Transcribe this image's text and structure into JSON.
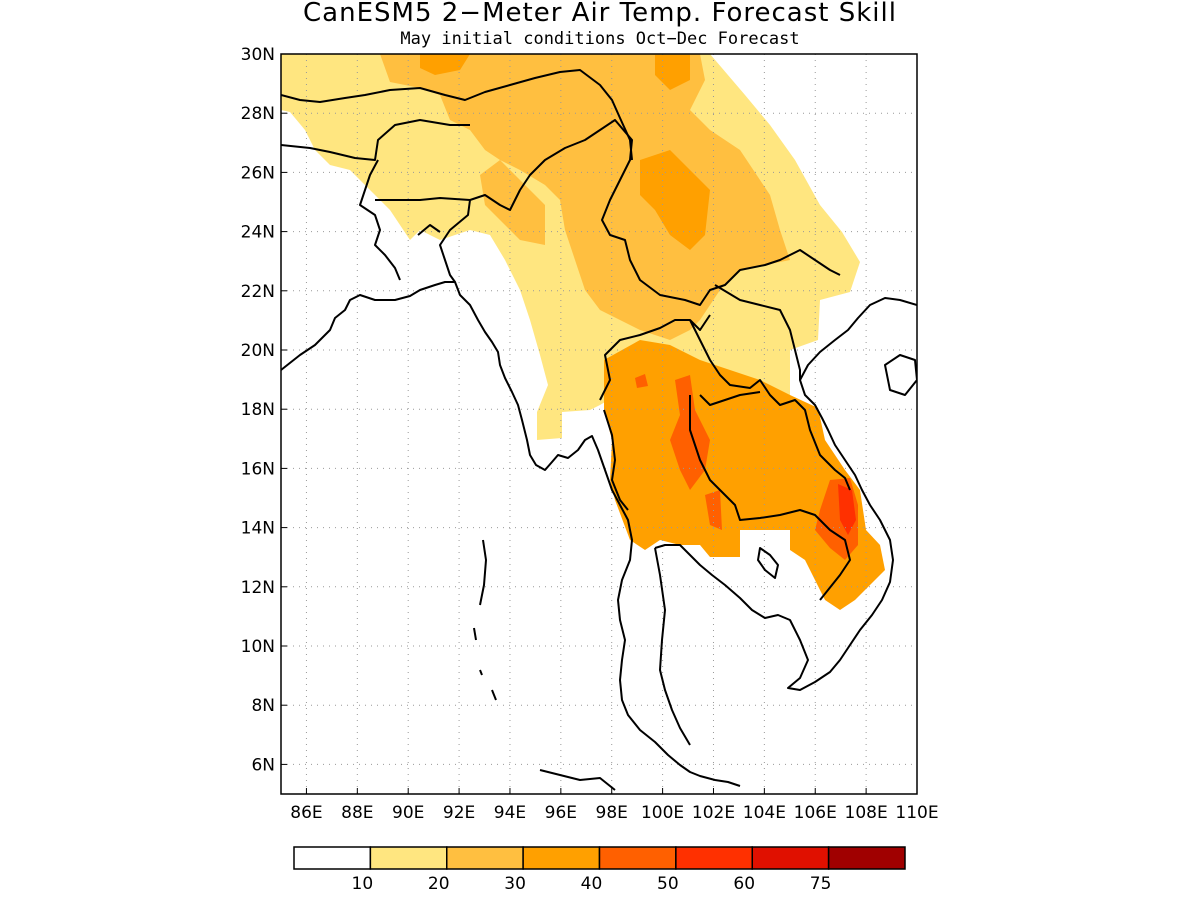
{
  "header": {
    "title": "CanESM5 2−Meter Air Temp. Forecast Skill",
    "subtitle": "May initial conditions  Oct−Dec Forecast"
  },
  "map": {
    "lat_ticks": [
      "30N",
      "28N",
      "26N",
      "24N",
      "22N",
      "20N",
      "18N",
      "16N",
      "14N",
      "12N",
      "10N",
      "8N",
      "6N"
    ],
    "lon_ticks": [
      "86E",
      "88E",
      "90E",
      "92E",
      "94E",
      "96E",
      "98E",
      "100E",
      "102E",
      "104E",
      "106E",
      "108E",
      "110E"
    ],
    "lat_range": [
      5,
      30
    ],
    "lon_range": [
      85,
      110
    ],
    "grid": "dotted",
    "region": "Mainland Southeast Asia, Bangladesh and northeast India"
  },
  "colorbar": {
    "boundaries": [
      "10",
      "20",
      "30",
      "40",
      "50",
      "60",
      "75"
    ],
    "colors": [
      "#ffffff",
      "#ffe680",
      "#ffbf40",
      "#ffa000",
      "#ff6000",
      "#ff3000",
      "#e01000",
      "#a00000"
    ]
  },
  "chart_data": {
    "type": "heatmap",
    "title": "CanESM5 2−Meter Air Temp. Forecast Skill",
    "subtitle": "May initial conditions  Oct−Dec Forecast",
    "x_ticks": [
      "86E",
      "88E",
      "90E",
      "92E",
      "94E",
      "96E",
      "98E",
      "100E",
      "102E",
      "104E",
      "106E",
      "108E",
      "110E"
    ],
    "y_ticks": [
      "6N",
      "8N",
      "10N",
      "12N",
      "14N",
      "16N",
      "18N",
      "20N",
      "22N",
      "24N",
      "26N",
      "28N",
      "30N"
    ],
    "xlim": [
      85,
      110
    ],
    "ylim": [
      5,
      30
    ],
    "levels": [
      10,
      20,
      30,
      40,
      50,
      60,
      75
    ]
  }
}
